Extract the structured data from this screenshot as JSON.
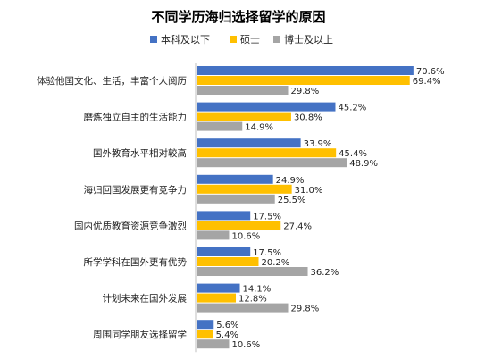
{
  "chart_data": {
    "type": "bar",
    "orientation": "horizontal",
    "title": "不同学历海归选择留学的原因",
    "legend_position": "top",
    "xlabel": "",
    "ylabel": "",
    "xlim": [
      0,
      80
    ],
    "grid": false,
    "categories": [
      "体验他国文化、生活，丰富个人阅历",
      "磨炼独立自主的生活能力",
      "国外教育水平相对较高",
      "海归回国发展更有竞争力",
      "国内优质教育资源竞争激烈",
      "所学学科在国外更有优势",
      "计划未来在国外发展",
      "周围同学朋友选择留学"
    ],
    "series": [
      {
        "name": "本科及以下",
        "color": "#4472C4",
        "values": [
          70.6,
          45.2,
          33.9,
          24.9,
          17.5,
          17.5,
          14.1,
          5.6
        ],
        "labels": [
          "70.6%",
          "45.2%",
          "33.9%",
          "24.9%",
          "17.5%",
          "17.5%",
          "14.1%",
          "5.6%"
        ]
      },
      {
        "name": "硕士",
        "color": "#FFC000",
        "values": [
          69.4,
          30.8,
          45.4,
          31.0,
          27.4,
          20.2,
          12.8,
          5.4
        ],
        "labels": [
          "69.4%",
          "30.8%",
          "45.4%",
          "31.0%",
          "27.4%",
          "20.2%",
          "12.8%",
          "5.4%"
        ]
      },
      {
        "name": "博士及以上",
        "color": "#A5A5A5",
        "values": [
          29.8,
          14.9,
          48.9,
          25.5,
          10.6,
          36.2,
          29.8,
          10.6
        ],
        "labels": [
          "29.8%",
          "14.9%",
          "48.9%",
          "25.5%",
          "10.6%",
          "36.2%",
          "29.8%",
          "10.6%"
        ]
      }
    ]
  }
}
